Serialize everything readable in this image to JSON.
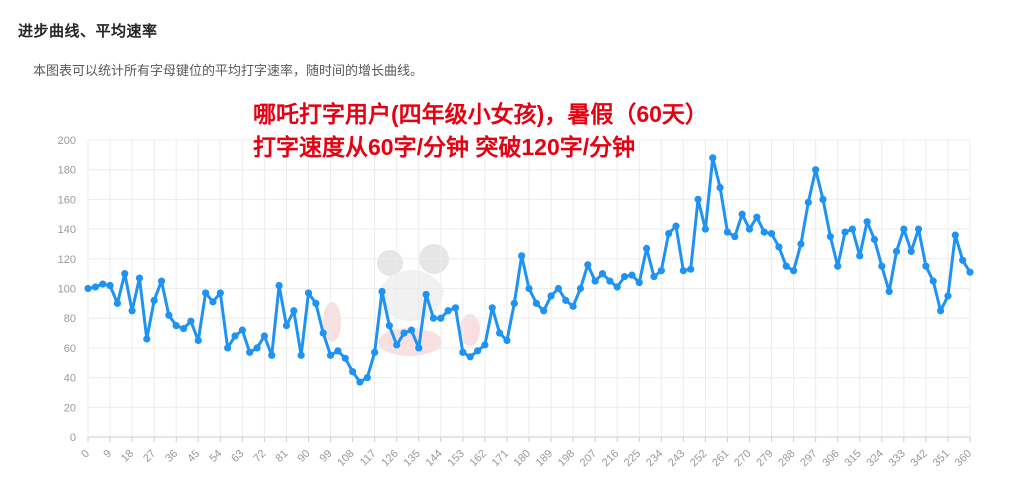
{
  "page": {
    "title": "进步曲线、平均速率",
    "subtitle": "本图表可以统计所有字母键位的平均打字速率，随时间的增长曲线。"
  },
  "annotation": {
    "line1": "哪吒打字用户(四年级小女孩)，暑假（60天）",
    "line2": "打字速度从60字/分钟 突破120字/分钟",
    "color": "#e60012"
  },
  "chart_data": {
    "type": "line",
    "title": "",
    "xlabel": "",
    "ylabel": "",
    "x_start": 0,
    "x_step": 3,
    "x_max": 360,
    "xlim": [
      0,
      360
    ],
    "ylim": [
      0,
      200
    ],
    "grid": true,
    "legend": "none",
    "x_tick_labels": [
      "0",
      "9",
      "18",
      "27",
      "36",
      "45",
      "54",
      "63",
      "72",
      "81",
      "90",
      "99",
      "108",
      "117",
      "126",
      "135",
      "144",
      "153",
      "162",
      "171",
      "180",
      "189",
      "198",
      "207",
      "216",
      "225",
      "234",
      "243",
      "252",
      "261",
      "270",
      "279",
      "288",
      "297",
      "306",
      "315",
      "324",
      "333",
      "342",
      "351",
      "360"
    ],
    "y_tick_labels": [
      "0",
      "20",
      "40",
      "60",
      "80",
      "100",
      "120",
      "140",
      "160",
      "180",
      "200"
    ],
    "values": [
      100,
      101,
      103,
      102,
      90,
      110,
      85,
      107,
      66,
      92,
      105,
      82,
      75,
      73,
      78,
      65,
      97,
      91,
      97,
      60,
      68,
      72,
      57,
      60,
      68,
      55,
      102,
      75,
      85,
      55,
      97,
      90,
      70,
      55,
      58,
      53,
      44,
      37,
      40,
      57,
      98,
      75,
      62,
      70,
      72,
      60,
      96,
      80,
      80,
      85,
      87,
      57,
      54,
      58,
      62,
      87,
      70,
      65,
      90,
      122,
      100,
      90,
      85,
      95,
      100,
      92,
      88,
      100,
      116,
      105,
      110,
      105,
      101,
      108,
      109,
      104,
      127,
      108,
      112,
      137,
      142,
      112,
      113,
      160,
      140,
      188,
      168,
      138,
      135,
      150,
      140,
      148,
      138,
      137,
      128,
      115,
      112,
      130,
      158,
      180,
      160,
      135,
      115,
      138,
      140,
      122,
      145,
      133,
      115,
      98,
      125,
      140,
      125,
      140,
      115,
      105,
      85,
      95,
      136,
      119,
      111
    ],
    "line_color": "#1e93f3",
    "point_color": "#1e93f3",
    "grid_color": "#ececec",
    "axis_color": "#cccccc",
    "tick_label_color": "#999999"
  }
}
